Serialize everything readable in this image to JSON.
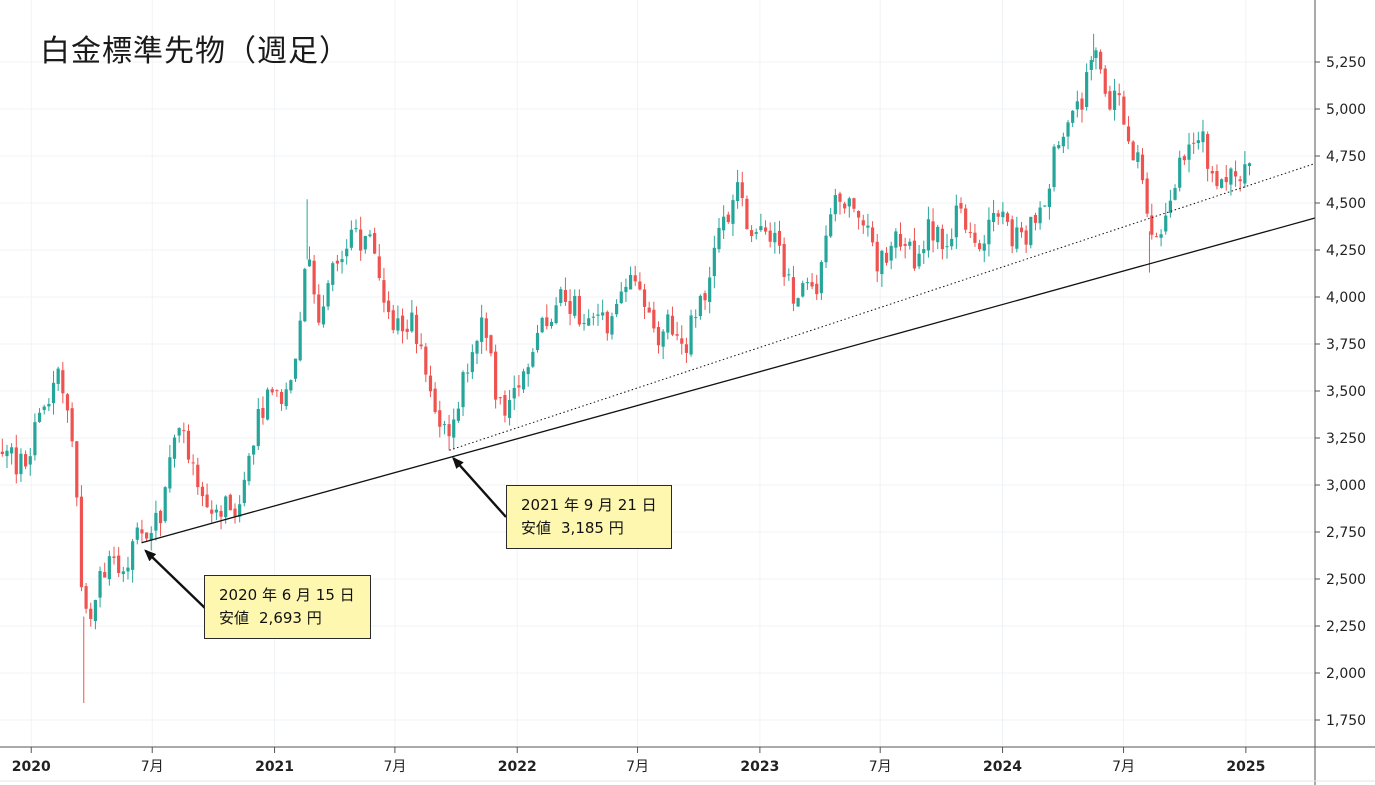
{
  "title": "白金標準先物（週足）",
  "colors": {
    "up": "#26a69a",
    "down": "#ef5350",
    "grid": "#f0f3f5",
    "axis": "#555555",
    "trend": "#111111",
    "callout_bg": "#fdf7b0"
  },
  "chart_data": {
    "type": "candlestick",
    "title": "白金標準先物（週足）",
    "yaxis": {
      "side": "right",
      "ylim": [
        1650,
        5400
      ],
      "ticks": [
        1750,
        2000,
        2250,
        2500,
        2750,
        3000,
        3250,
        3500,
        3750,
        4000,
        4250,
        4500,
        4750,
        5000,
        5250
      ],
      "tick_labels": [
        "1,750",
        "2,000",
        "2,250",
        "2,500",
        "2,750",
        "3,000",
        "3,250",
        "3,500",
        "3,750",
        "4,000",
        "4,250",
        "4,500",
        "4,750",
        "5,000",
        "5,250"
      ]
    },
    "xaxis": {
      "range": [
        "2019-11-15",
        "2025-04-15"
      ],
      "ticks": [
        {
          "date": "2020-01-01",
          "label": "2020",
          "bold": true
        },
        {
          "date": "2020-07-01",
          "label": "7月",
          "bold": false
        },
        {
          "date": "2021-01-01",
          "label": "2021",
          "bold": true
        },
        {
          "date": "2021-07-01",
          "label": "7月",
          "bold": false
        },
        {
          "date": "2022-01-01",
          "label": "2022",
          "bold": true
        },
        {
          "date": "2022-07-01",
          "label": "7月",
          "bold": false
        },
        {
          "date": "2023-01-01",
          "label": "2023",
          "bold": true
        },
        {
          "date": "2023-07-01",
          "label": "7月",
          "bold": false
        },
        {
          "date": "2024-01-01",
          "label": "2024",
          "bold": true
        },
        {
          "date": "2024-07-01",
          "label": "7月",
          "bold": false
        },
        {
          "date": "2025-01-01",
          "label": "2025",
          "bold": true
        }
      ]
    },
    "price_path": [
      [
        "2019-11-15",
        3170
      ],
      [
        "2019-12-20",
        3120
      ],
      [
        "2020-01-10",
        3330
      ],
      [
        "2020-02-07",
        3580
      ],
      [
        "2020-02-28",
        3450
      ],
      [
        "2020-03-13",
        2800
      ],
      [
        "2020-03-20",
        2250
      ],
      [
        "2020-04-03",
        2400
      ],
      [
        "2020-04-24",
        2560
      ],
      [
        "2020-05-29",
        2600
      ],
      [
        "2020-06-15",
        2770
      ],
      [
        "2020-07-10",
        2800
      ],
      [
        "2020-08-07",
        3250
      ],
      [
        "2020-08-28",
        3180
      ],
      [
        "2020-09-25",
        2850
      ],
      [
        "2020-10-23",
        2870
      ],
      [
        "2020-11-13",
        2930
      ],
      [
        "2020-12-11",
        3400
      ],
      [
        "2021-01-15",
        3500
      ],
      [
        "2021-02-05",
        3750
      ],
      [
        "2021-02-19",
        4300
      ],
      [
        "2021-03-12",
        3870
      ],
      [
        "2021-04-02",
        4180
      ],
      [
        "2021-04-30",
        4300
      ],
      [
        "2021-05-21",
        4350
      ],
      [
        "2021-06-18",
        3880
      ],
      [
        "2021-07-09",
        3850
      ],
      [
        "2021-07-30",
        3900
      ],
      [
        "2021-08-20",
        3480
      ],
      [
        "2021-09-21",
        3220
      ],
      [
        "2021-10-15",
        3600
      ],
      [
        "2021-11-12",
        3950
      ],
      [
        "2021-12-03",
        3380
      ],
      [
        "2021-12-24",
        3420
      ],
      [
        "2022-01-14",
        3600
      ],
      [
        "2022-02-11",
        3850
      ],
      [
        "2022-03-07",
        3980
      ],
      [
        "2022-03-25",
        3950
      ],
      [
        "2022-04-15",
        3900
      ],
      [
        "2022-05-06",
        3850
      ],
      [
        "2022-05-27",
        3900
      ],
      [
        "2022-06-17",
        4100
      ],
      [
        "2022-07-08",
        3980
      ],
      [
        "2022-07-29",
        3720
      ],
      [
        "2022-08-19",
        3900
      ],
      [
        "2022-09-02",
        3700
      ],
      [
        "2022-09-23",
        3850
      ],
      [
        "2022-10-14",
        4050
      ],
      [
        "2022-11-04",
        4350
      ],
      [
        "2022-11-25",
        4580
      ],
      [
        "2022-12-16",
        4350
      ],
      [
        "2023-01-06",
        4350
      ],
      [
        "2023-01-27",
        4250
      ],
      [
        "2023-02-17",
        4050
      ],
      [
        "2023-03-10",
        4000
      ],
      [
        "2023-03-31",
        4050
      ],
      [
        "2023-04-21",
        4450
      ],
      [
        "2023-05-12",
        4550
      ],
      [
        "2023-06-02",
        4450
      ],
      [
        "2023-06-23",
        4200
      ],
      [
        "2023-07-14",
        4250
      ],
      [
        "2023-08-04",
        4300
      ],
      [
        "2023-08-25",
        4200
      ],
      [
        "2023-09-15",
        4400
      ],
      [
        "2023-10-06",
        4200
      ],
      [
        "2023-10-27",
        4450
      ],
      [
        "2023-11-17",
        4300
      ],
      [
        "2023-12-08",
        4350
      ],
      [
        "2023-12-29",
        4450
      ],
      [
        "2024-01-19",
        4300
      ],
      [
        "2024-02-09",
        4350
      ],
      [
        "2024-03-01",
        4450
      ],
      [
        "2024-03-22",
        4800
      ],
      [
        "2024-04-12",
        4950
      ],
      [
        "2024-05-03",
        5100
      ],
      [
        "2024-05-17",
        5350
      ],
      [
        "2024-06-07",
        5050
      ],
      [
        "2024-06-28",
        5000
      ],
      [
        "2024-07-19",
        4750
      ],
      [
        "2024-08-02",
        4600
      ],
      [
        "2024-08-09",
        4350
      ],
      [
        "2024-08-30",
        4300
      ],
      [
        "2024-09-20",
        4650
      ],
      [
        "2024-10-11",
        4850
      ],
      [
        "2024-10-25",
        4900
      ],
      [
        "2024-11-15",
        4600
      ],
      [
        "2024-12-06",
        4650
      ],
      [
        "2024-12-27",
        4700
      ],
      [
        "2025-01-10",
        4700
      ]
    ],
    "trendlines": [
      {
        "name": "support-line",
        "style": "solid",
        "p1": [
          "2020-06-15",
          2693
        ],
        "p2": [
          "2025-04-15",
          4420
        ]
      },
      {
        "name": "secondary-line",
        "style": "dotted",
        "p1": [
          "2021-09-21",
          3185
        ],
        "p2": [
          "2025-04-15",
          4710
        ]
      }
    ],
    "annotations": [
      {
        "date_label": "2020 年 6 月 15 日",
        "low_label": "安値",
        "value_label": "2,693 円",
        "point": [
          "2020-06-15",
          2693
        ]
      },
      {
        "date_label": "2021 年 9 月 21 日",
        "low_label": "安値",
        "value_label": "3,185 円",
        "point": [
          "2021-09-21",
          3185
        ]
      }
    ]
  }
}
